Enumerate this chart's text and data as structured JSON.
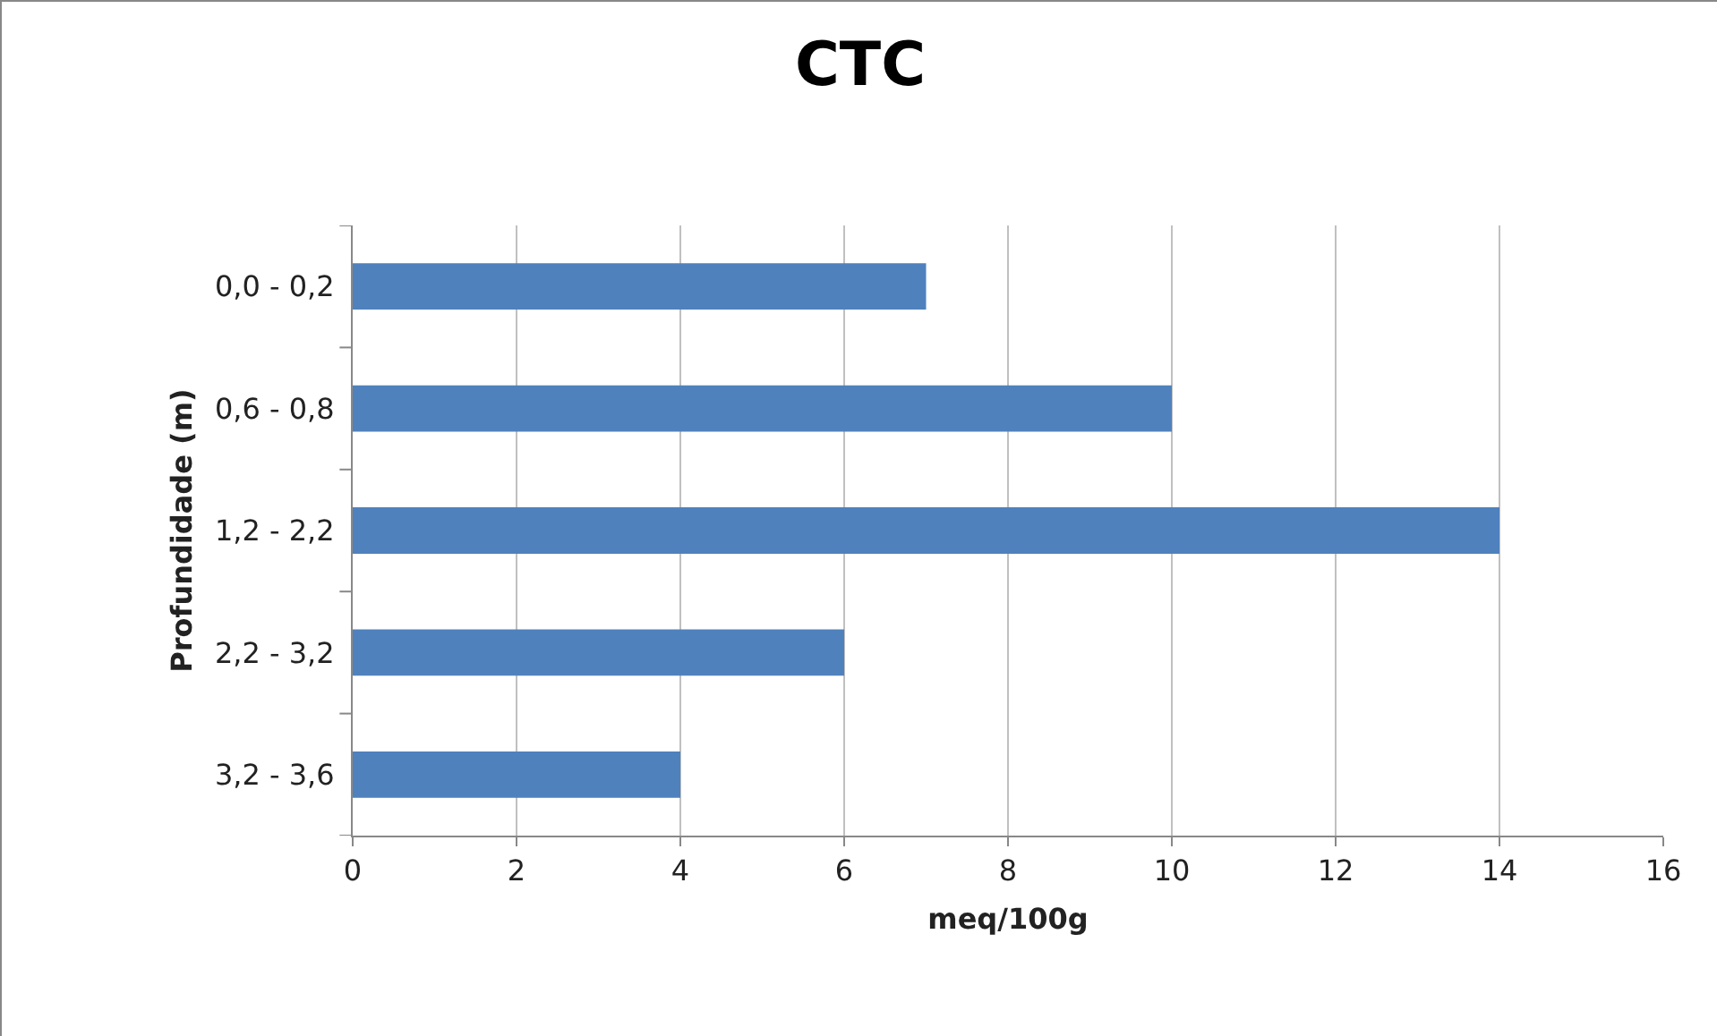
{
  "chart_data": {
    "type": "bar",
    "orientation": "horizontal",
    "title": "CTC",
    "xlabel": "meq/100g",
    "ylabel": "Profundidade (m)",
    "categories": [
      "0,0 - 0,2",
      "0,6 - 0,8",
      "1,2 - 2,2",
      "2,2 - 3,2",
      "3,2 - 3,6"
    ],
    "values": [
      7,
      10,
      14,
      6,
      4
    ],
    "color": "#4f81bd",
    "xlim": [
      0,
      16
    ],
    "xticks": [
      0,
      2,
      4,
      6,
      8,
      10,
      12,
      14,
      16
    ],
    "grid": "x",
    "legend": false
  }
}
